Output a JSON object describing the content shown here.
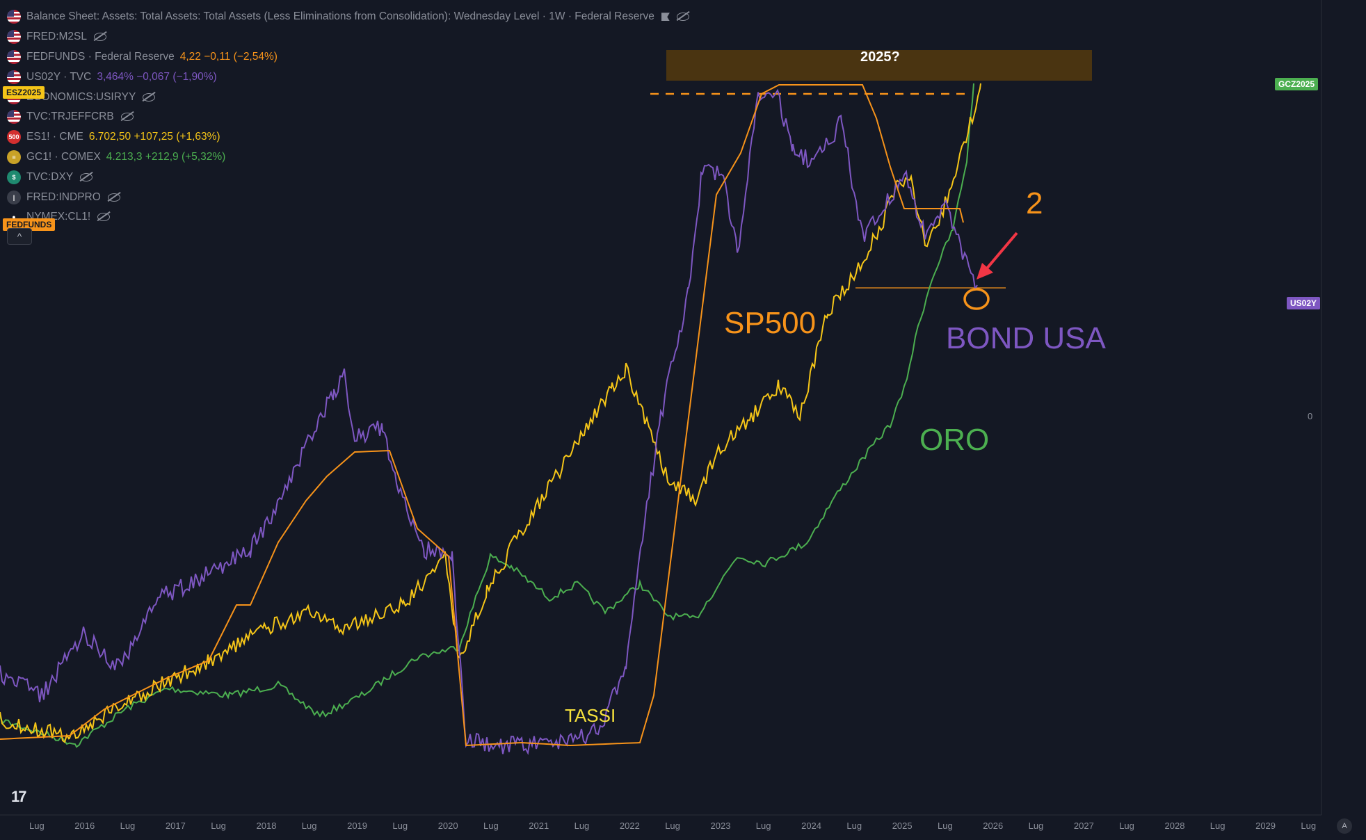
{
  "legend": [
    {
      "icon": "us-flag-icon",
      "name": "Balance Sheet: Assets: Total Assets: Total Assets (Less Eliminations from Consolidation): Wednesday Level · 1W · Federal Reserve",
      "value": "",
      "value_color": "#8a8e99",
      "eye": true,
      "flag": true
    },
    {
      "icon": "us-flag-icon",
      "name": "FRED:M2SL",
      "value": "",
      "value_color": "#8a8e99",
      "eye": true
    },
    {
      "icon": "us-flag-icon",
      "name": "FEDFUNDS · Federal Reserve",
      "value": "4,22  −0,11 (−2,54%)",
      "value_color": "#f7931a"
    },
    {
      "icon": "us-flag-icon",
      "name": "US02Y · TVC",
      "value": "3,464%  −0,067 (−1,90%)",
      "value_color": "#7e57c2"
    },
    {
      "icon": "us-flag-icon",
      "name": "ECONOMICS:USIRYY",
      "value": "",
      "value_color": "#8a8e99",
      "eye": true
    },
    {
      "icon": "us-flag-icon",
      "name": "TVC:TRJEFFCRB",
      "value": "",
      "value_color": "#8a8e99",
      "eye": true
    },
    {
      "icon": "sp500-icon",
      "name": "ES1! · CME",
      "value": "6.702,50  +107,25 (+1,63%)",
      "value_color": "#f5c518"
    },
    {
      "icon": "gold-icon",
      "name": "GC1! · COMEX",
      "value": "4.213,3  +212,9 (+5,32%)",
      "value_color": "#4caf50"
    },
    {
      "icon": "dollar-icon",
      "name": "TVC:DXY",
      "value": "",
      "value_color": "#8a8e99",
      "eye": true
    },
    {
      "icon": "fred-icon",
      "name": "FRED:INDPRO",
      "value": "",
      "value_color": "#8a8e99",
      "eye": true
    },
    {
      "icon": "oil-drop-icon",
      "name": "NYMEX:CL1!",
      "value": "",
      "value_color": "#8a8e99",
      "eye": true
    }
  ],
  "price_tags": {
    "gcz": "GCZ2025",
    "us02y": "US02Y",
    "es_tag": "ESZ2025",
    "fedfunds_tag": "FEDFUNDS",
    "zero": "0"
  },
  "annotations": {
    "box_label": "2025?",
    "sp500": "SP500",
    "bond": "BOND USA",
    "oro": "ORO",
    "tassi": "TASSI",
    "two": "2"
  },
  "colors": {
    "bg": "#141824",
    "fedfunds": "#f7931a",
    "us02y": "#7e57c2",
    "sp500": "#f5c518",
    "gold": "#4caf50",
    "arrow": "#f23645"
  },
  "x_axis": [
    "Lug",
    "2016",
    "Lug",
    "2017",
    "Lug",
    "2018",
    "Lug",
    "2019",
    "Lug",
    "2020",
    "Lug",
    "2021",
    "Lug",
    "2022",
    "Lug",
    "2023",
    "Lug",
    "2024",
    "Lug",
    "2025",
    "Lug",
    "2026",
    "Lug",
    "2027",
    "Lug",
    "2028",
    "Lug",
    "2029",
    "Lug"
  ],
  "collapse_button": "^",
  "auto_button": "A",
  "logo": "17"
}
